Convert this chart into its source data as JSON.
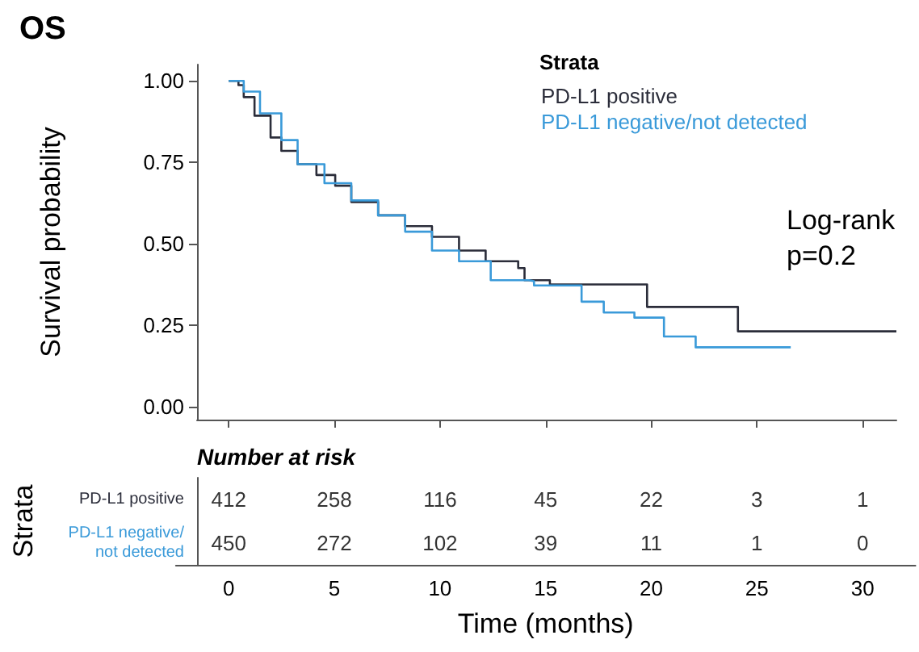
{
  "chart_data": [
    {
      "type": "step",
      "title": "OS",
      "ylabel": "Survival probability",
      "legend_title": "Strata",
      "annotations": [
        "Log-rank",
        "p=0.2"
      ],
      "xlim": [
        -1.5,
        31.6
      ],
      "xticks": [
        0,
        5,
        10,
        15,
        20,
        25,
        30
      ],
      "ylim": [
        -0.04,
        1.05
      ],
      "yticks": [
        {
          "value": 0,
          "label": "0.00"
        },
        {
          "value": 0.25,
          "label": "0.25"
        },
        {
          "value": 0.5,
          "label": "0.50"
        },
        {
          "value": 0.75,
          "label": "0.75"
        },
        {
          "value": 1,
          "label": "1.00"
        }
      ],
      "tick_labels": "y",
      "grid": false,
      "legend": "top right",
      "series": [
        {
          "name": "PD-L1 positive",
          "color": "#2b2d3a",
          "x": [
            0,
            0.46,
            0.71,
            1.22,
            1.98,
            2.49,
            3.26,
            4.15,
            5.04,
            5.8,
            7.07,
            8.35,
            9.62,
            10.9,
            12.16,
            13.7,
            14.0,
            15.2,
            19.8,
            19.8,
            23.7,
            24.1,
            31.6
          ],
          "values": [
            1,
            0.987,
            0.95,
            0.893,
            0.826,
            0.785,
            0.744,
            0.711,
            0.678,
            0.628,
            0.587,
            0.554,
            0.521,
            0.479,
            0.446,
            0.425,
            0.388,
            0.375,
            0.355,
            0.306,
            0.306,
            0.231,
            0.231
          ]
        },
        {
          "name": "PD-L1 negative/not detected",
          "color": "#3a9ad9",
          "x": [
            0,
            0.71,
            1.48,
            2.49,
            3.26,
            4.53,
            5.8,
            7.07,
            8.35,
            9.62,
            10.9,
            12.4,
            14.2,
            14.45,
            16.7,
            17.75,
            19.2,
            20.6,
            20.6,
            22.1,
            26.6
          ],
          "values": [
            1,
            0.967,
            0.9,
            0.818,
            0.744,
            0.686,
            0.633,
            0.587,
            0.537,
            0.479,
            0.446,
            0.388,
            0.385,
            0.372,
            0.322,
            0.289,
            0.273,
            0.248,
            0.215,
            0.182,
            0.182
          ]
        }
      ]
    },
    {
      "type": "heatmap",
      "title": "Number at risk",
      "ylabel": "Strata",
      "xlabel": "Time (months)",
      "categories": [
        "0",
        "5",
        "10",
        "15",
        "20",
        "25",
        "30"
      ],
      "y_categories": [
        "PD-L1 positive",
        "PD-L1 negative/not detected"
      ],
      "data_labels": true,
      "cells": [
        [
          412,
          258,
          116,
          45,
          22,
          3,
          1
        ],
        [
          450,
          272,
          102,
          39,
          11,
          1,
          0
        ]
      ]
    }
  ]
}
